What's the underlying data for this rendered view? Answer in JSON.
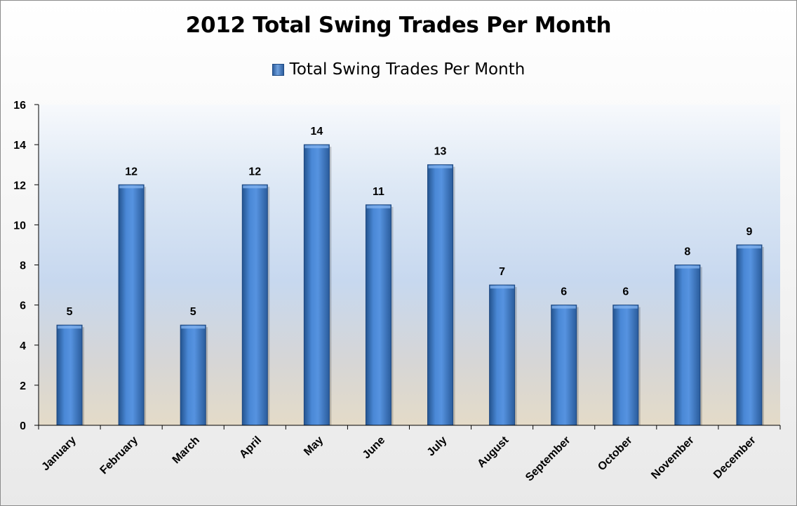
{
  "chart_data": {
    "type": "bar",
    "title": "2012 Total Swing Trades Per Month",
    "xlabel": "",
    "ylabel": "",
    "categories": [
      "January",
      "February",
      "March",
      "April",
      "May",
      "June",
      "July",
      "August",
      "September",
      "October",
      "November",
      "December"
    ],
    "series": [
      {
        "name": "Total Swing Trades Per Month",
        "values": [
          5,
          12,
          5,
          12,
          14,
          11,
          13,
          7,
          6,
          6,
          8,
          9
        ],
        "color": "#3d78c9"
      }
    ],
    "ylim": [
      0,
      16
    ],
    "yticks": [
      "0",
      "2",
      "4",
      "6",
      "8",
      "10",
      "12",
      "14",
      "16"
    ],
    "data_labels": true,
    "grid": false,
    "legend_position": "top"
  }
}
